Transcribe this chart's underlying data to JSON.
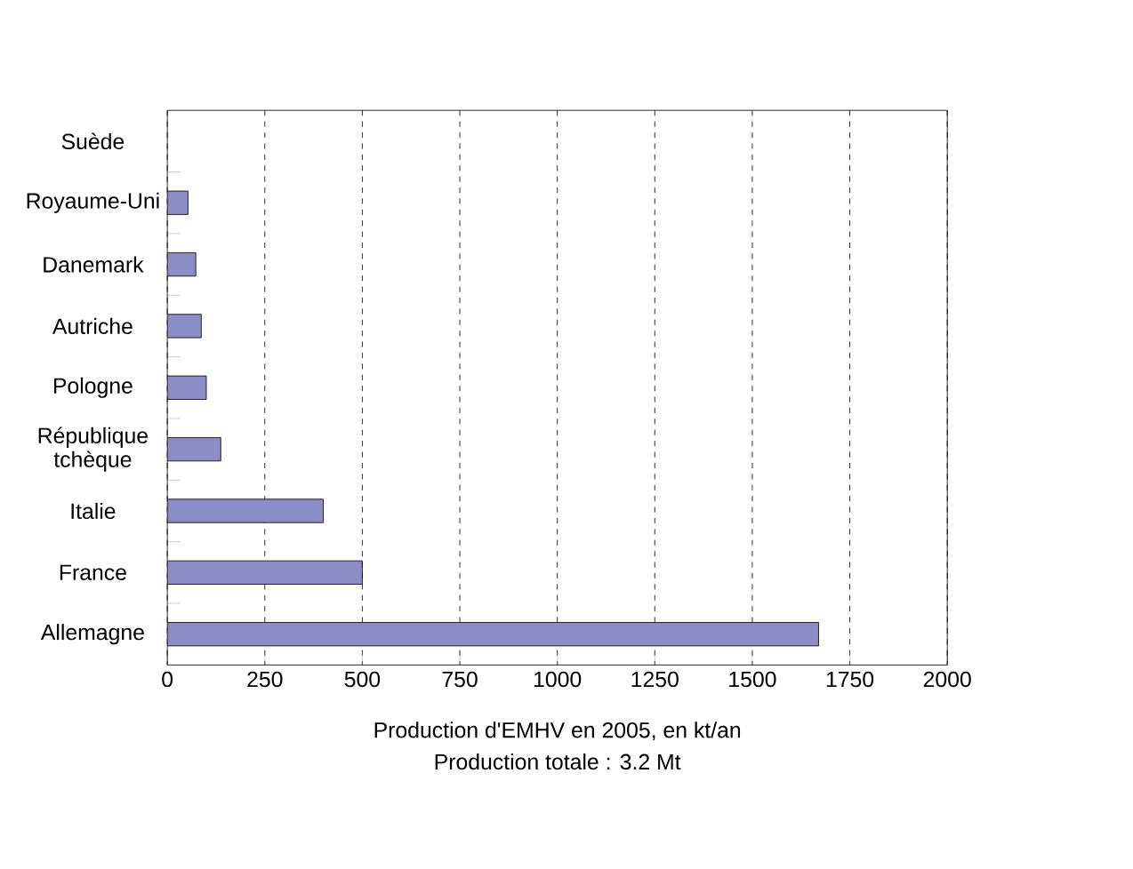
{
  "chart_data": {
    "type": "bar",
    "orientation": "horizontal",
    "categories": [
      "Suède",
      "Royaume-Uni",
      "Danemark",
      "Autriche",
      "Pologne",
      "République tchèque",
      "Italie",
      "France",
      "Allemagne"
    ],
    "values": [
      null,
      53,
      73,
      87,
      100,
      137,
      400,
      500,
      1670
    ],
    "color": "#8b8ec6",
    "xlim": [
      0,
      2000
    ],
    "xticks": [
      0,
      250,
      500,
      750,
      1000,
      1250,
      1500,
      1750,
      2000
    ],
    "grid": "x",
    "xlabel": "Production d'EMHV en 2005, en kt/an",
    "annotations": [
      "Production totale : 3.2 Mt"
    ]
  }
}
